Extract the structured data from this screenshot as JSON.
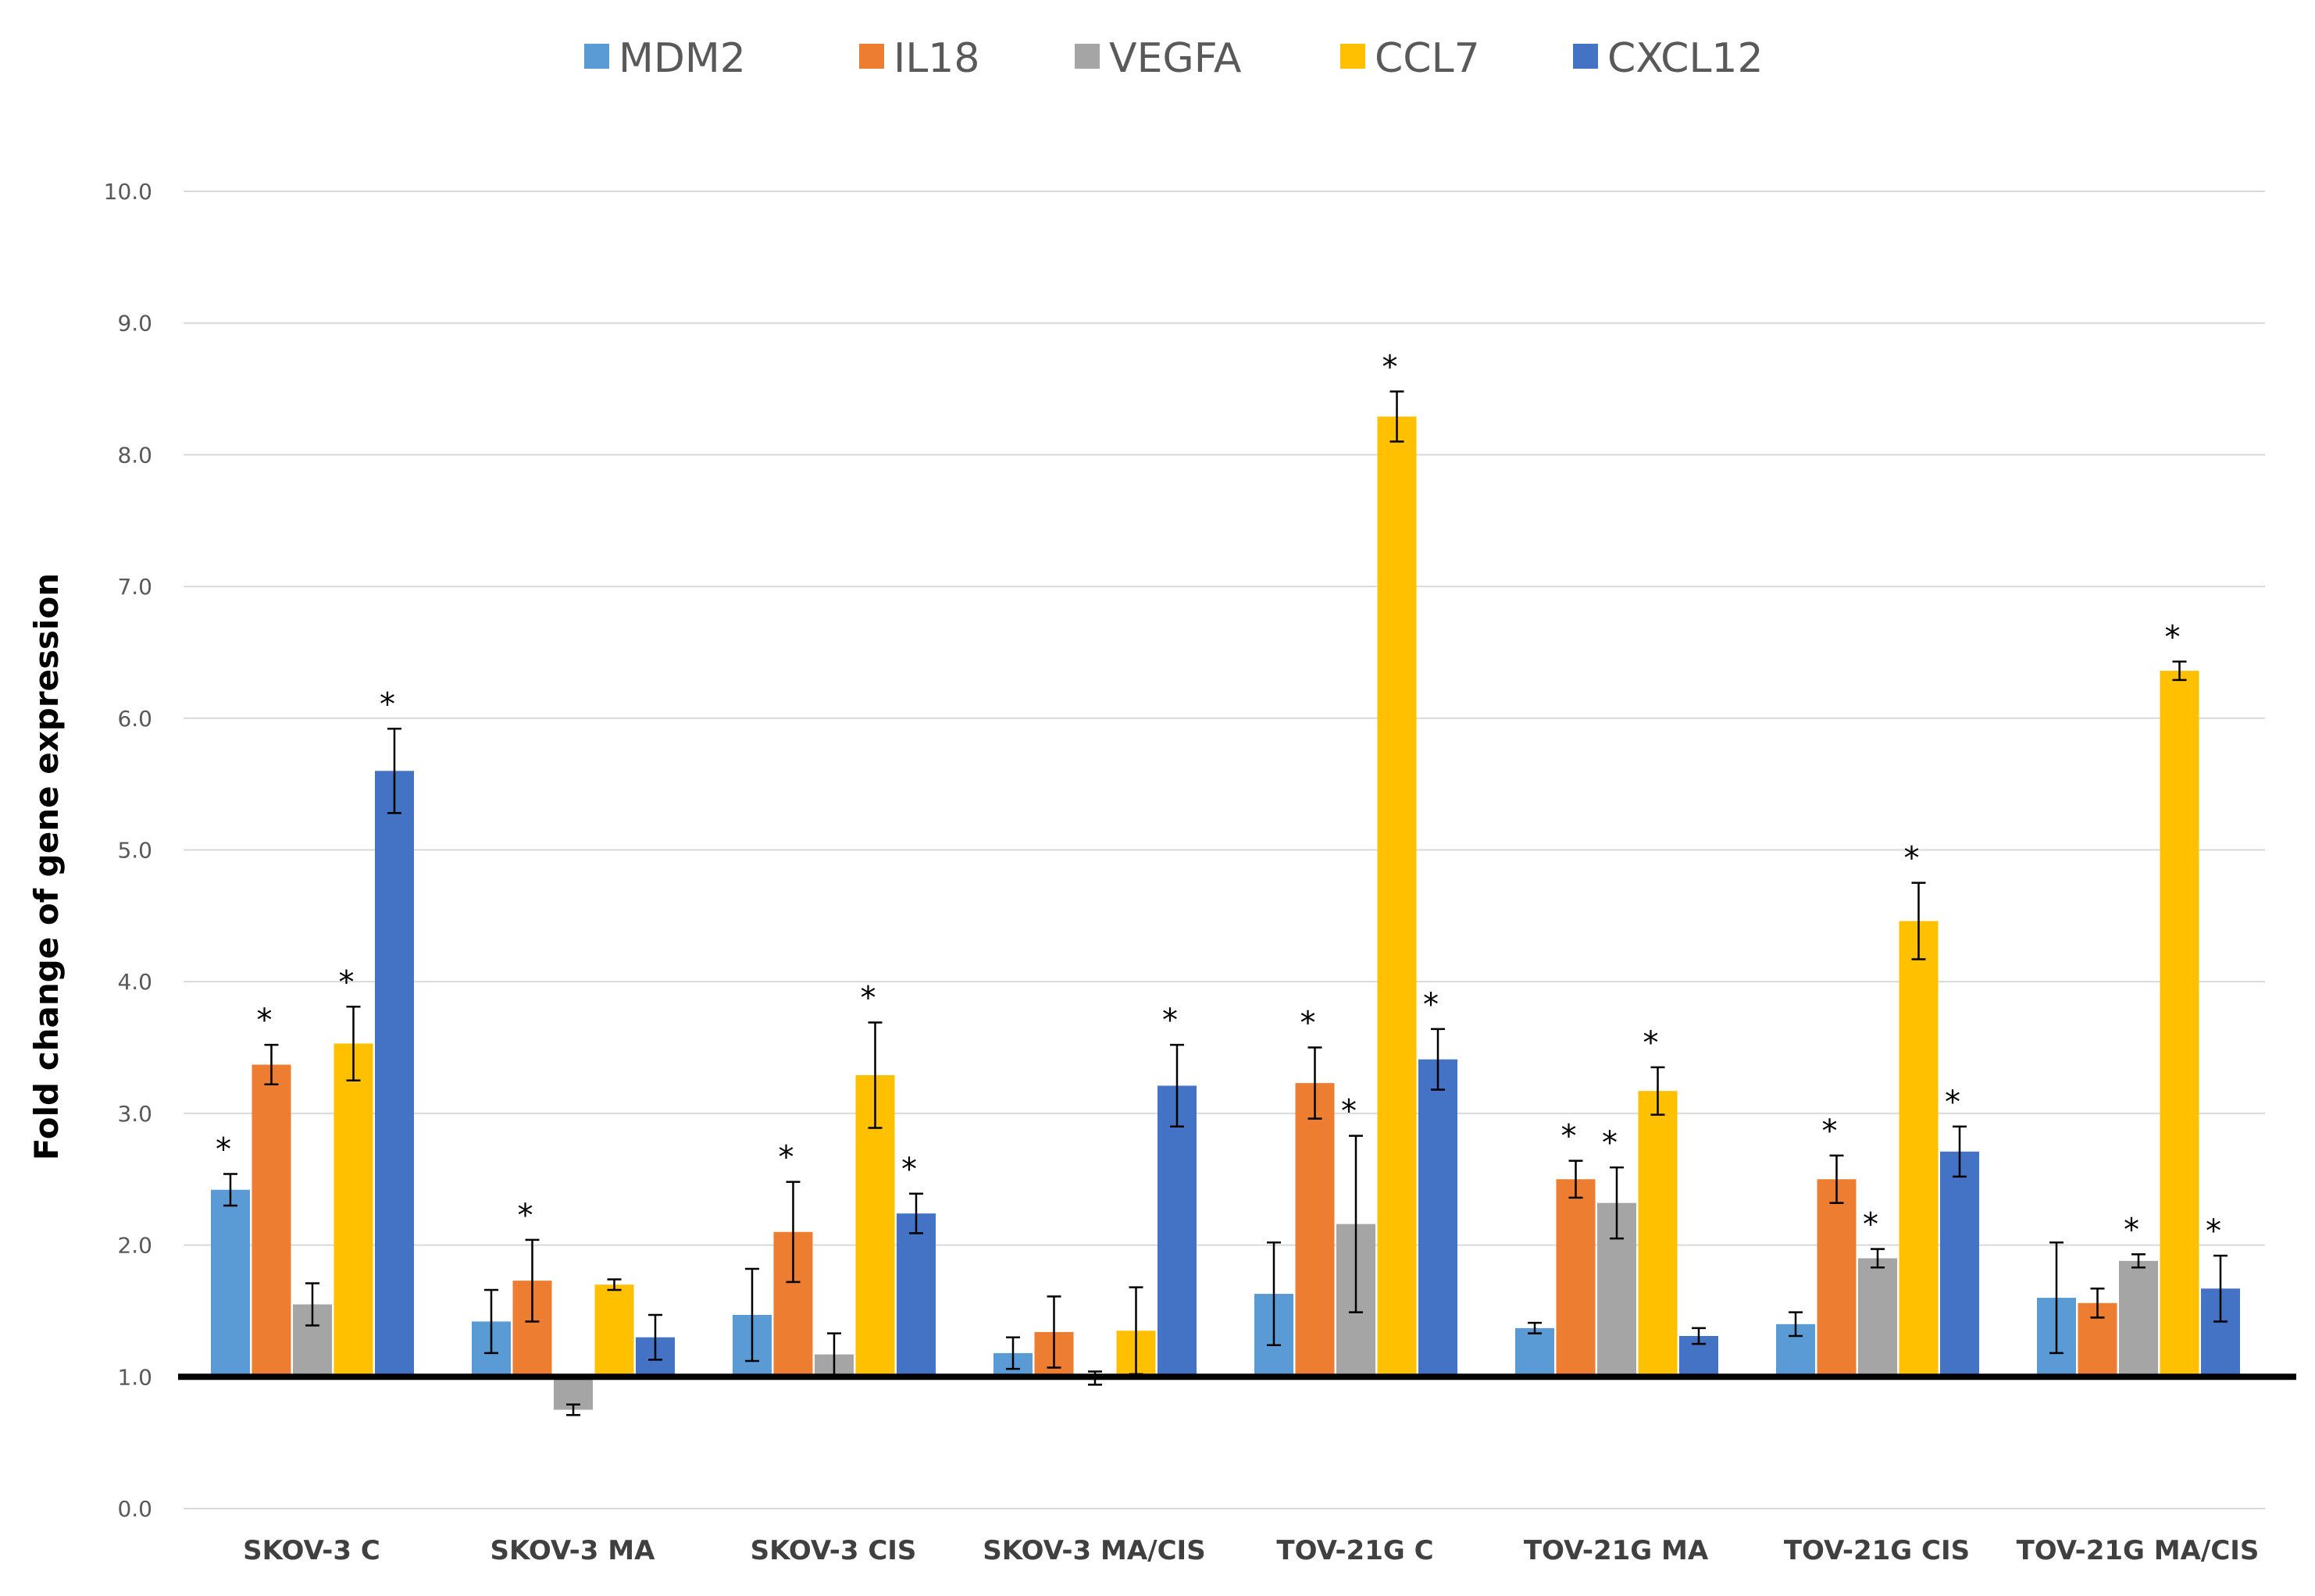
{
  "chart_data": {
    "type": "bar",
    "title": "",
    "xlabel": "",
    "ylabel": "Fold change of gene expression",
    "ylim": [
      0,
      10
    ],
    "yticks": [
      "0.0",
      "1.0",
      "2.0",
      "3.0",
      "4.0",
      "5.0",
      "6.0",
      "7.0",
      "8.0",
      "9.0",
      "10.0"
    ],
    "baseline": 1.0,
    "grid": true,
    "legend_position": "top-center",
    "categories": [
      "SKOV-3 C",
      "SKOV-3 MA",
      "SKOV-3 CIS",
      "SKOV-3 MA/CIS",
      "TOV-21G C",
      "TOV-21G MA",
      "TOV-21G CIS",
      "TOV-21G MA/CIS"
    ],
    "series": [
      {
        "name": "MDM2",
        "color": "#5B9BD5",
        "values": [
          2.42,
          1.42,
          1.47,
          1.18,
          1.63,
          1.37,
          1.4,
          1.6
        ],
        "errors": [
          0.12,
          0.24,
          0.35,
          0.12,
          0.39,
          0.04,
          0.09,
          0.42
        ],
        "significant": [
          true,
          false,
          false,
          false,
          false,
          false,
          false,
          false
        ]
      },
      {
        "name": "IL18",
        "color": "#ED7D31",
        "values": [
          3.37,
          1.73,
          2.1,
          1.34,
          3.23,
          2.5,
          2.5,
          1.56
        ],
        "errors": [
          0.15,
          0.31,
          0.38,
          0.27,
          0.27,
          0.14,
          0.18,
          0.11
        ],
        "significant": [
          true,
          true,
          true,
          false,
          true,
          true,
          true,
          false
        ]
      },
      {
        "name": "VEGFA",
        "color": "#A5A5A5",
        "values": [
          1.55,
          0.75,
          1.17,
          0.99,
          2.16,
          2.32,
          1.9,
          1.88
        ],
        "errors": [
          0.16,
          0.04,
          0.16,
          0.05,
          0.67,
          0.27,
          0.07,
          0.05
        ],
        "significant": [
          false,
          false,
          false,
          false,
          true,
          true,
          true,
          true
        ]
      },
      {
        "name": "CCL7",
        "color": "#FFC000",
        "values": [
          3.53,
          1.7,
          3.29,
          1.35,
          8.29,
          3.17,
          4.46,
          6.36
        ],
        "errors": [
          0.28,
          0.04,
          0.4,
          0.33,
          0.19,
          0.18,
          0.29,
          0.07
        ],
        "significant": [
          true,
          false,
          true,
          false,
          true,
          true,
          true,
          true
        ]
      },
      {
        "name": "CXCL12",
        "color": "#4472C4",
        "values": [
          5.6,
          1.3,
          2.24,
          3.21,
          3.41,
          1.31,
          2.71,
          1.67
        ],
        "errors": [
          0.32,
          0.17,
          0.15,
          0.31,
          0.23,
          0.06,
          0.19,
          0.25
        ],
        "significant": [
          true,
          false,
          true,
          true,
          true,
          false,
          true,
          true
        ]
      }
    ],
    "significance_marker": "*"
  }
}
